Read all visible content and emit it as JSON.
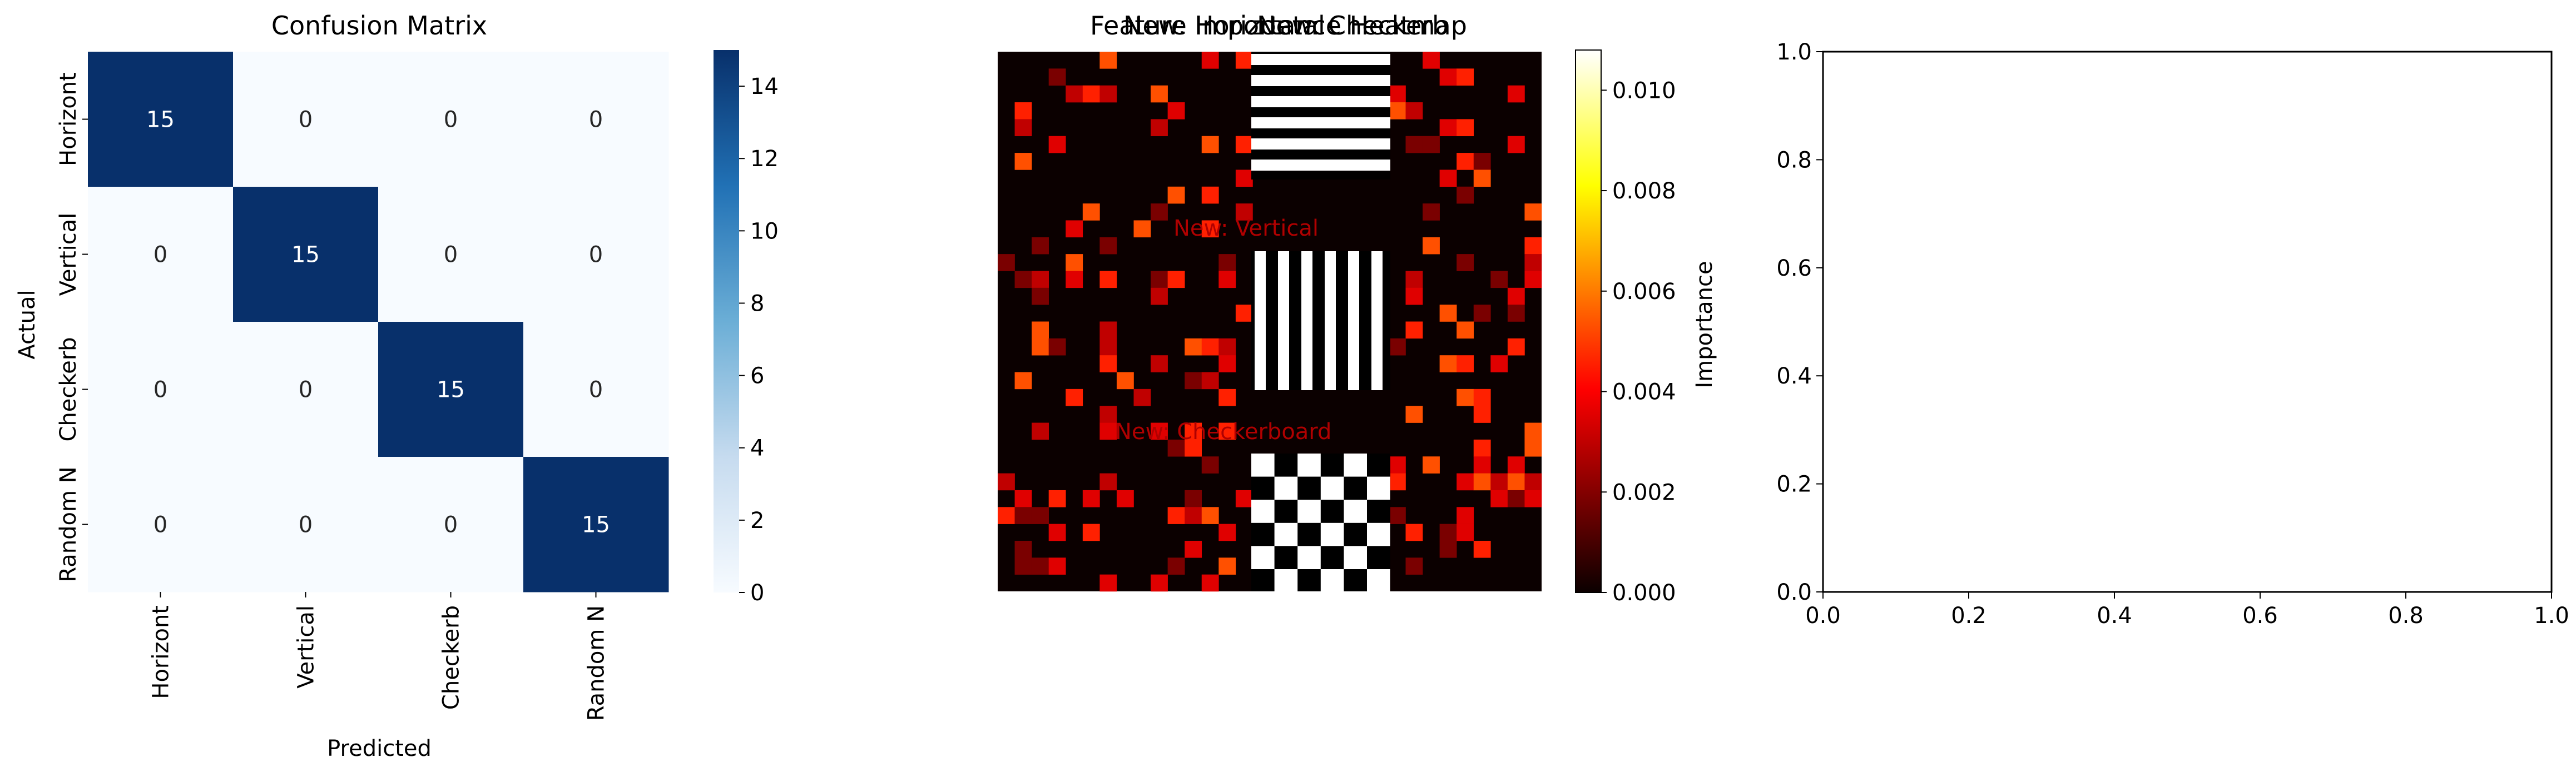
{
  "chart_data": [
    {
      "type": "heatmap",
      "title": "Confusion Matrix",
      "xlabel": "Predicted",
      "ylabel": "Actual",
      "categories": [
        "Horizont",
        "Vertical",
        "Checkerb",
        "Random N"
      ],
      "values": [
        [
          15,
          0,
          0,
          0
        ],
        [
          0,
          15,
          0,
          0
        ],
        [
          0,
          0,
          15,
          0
        ],
        [
          0,
          0,
          0,
          15
        ]
      ],
      "colormap": "Blues",
      "colorbar_range": [
        0,
        15
      ],
      "colorbar_ticks": [
        "0",
        "2",
        "4",
        "6",
        "8",
        "10",
        "12",
        "14"
      ],
      "colors": {
        "low": "#f7fbff",
        "high": "#08306b"
      },
      "grid": false
    },
    {
      "type": "heatmap",
      "title": "Feature Importance Heatmap",
      "overlapping_titles": [
        "New: Horizontal",
        "New: Checkerb"
      ],
      "colormap": "hot",
      "colorbar_label": "Importance",
      "colorbar_range": [
        0,
        0.0108
      ],
      "colorbar_ticks": [
        "0.000",
        "0.002",
        "0.004",
        "0.006",
        "0.008",
        "0.010"
      ],
      "inset_images": [
        "horizontal stripes",
        "vertical stripes",
        "checkerboard"
      ],
      "overlapping_labels": [
        "New: Vertical",
        "New: Checkerboard"
      ],
      "grid": false
    },
    {
      "type": "line",
      "title": "",
      "xlim": [
        0,
        1
      ],
      "ylim": [
        0,
        1
      ],
      "xticks": [
        "0.0",
        "0.2",
        "0.4",
        "0.6",
        "0.8",
        "1.0"
      ],
      "yticks": [
        "0.0",
        "0.2",
        "0.4",
        "0.6",
        "0.8",
        "1.0"
      ],
      "series": [],
      "grid": false
    }
  ]
}
